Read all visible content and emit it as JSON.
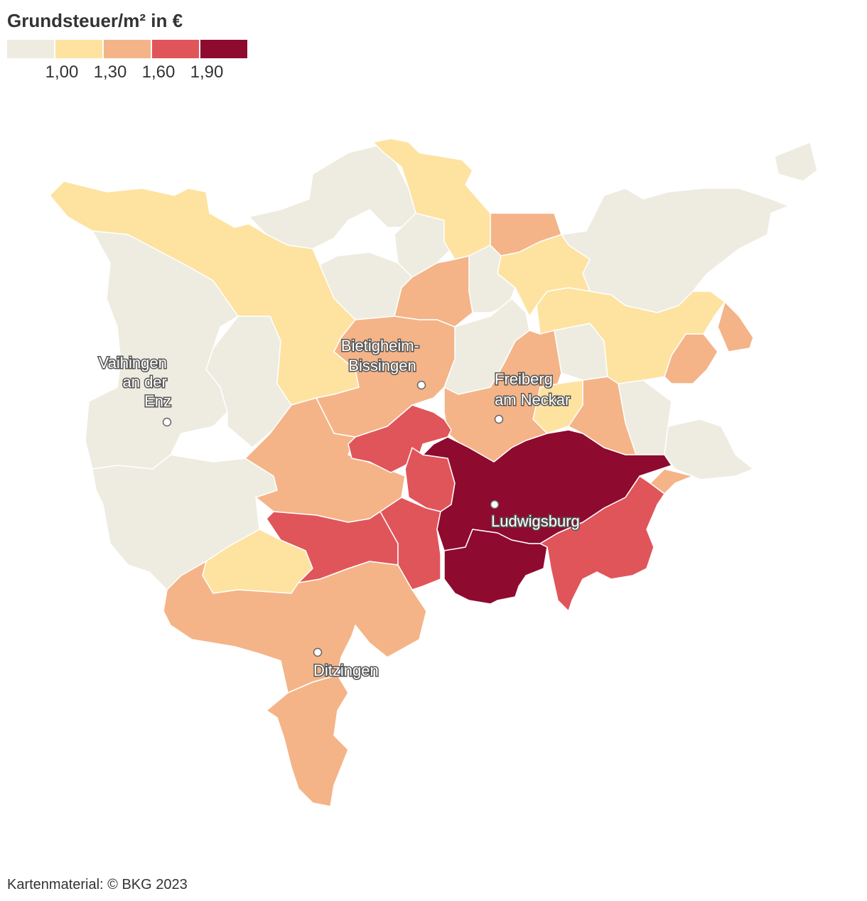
{
  "title": "Grundsteuer/m² in €",
  "legend": {
    "colors": [
      "#eeebe0",
      "#fee2a0",
      "#f4b488",
      "#e0555a",
      "#8e0a2f"
    ],
    "ticks": [
      "1,00",
      "1,30",
      "1,60",
      "1,90"
    ]
  },
  "cities": [
    {
      "lines": [
        "Vaihingen",
        "an der",
        "Enz"
      ]
    },
    {
      "lines": [
        "Bietigheim-",
        "Bissingen"
      ]
    },
    {
      "lines": [
        "Freiberg",
        "am Neckar"
      ]
    },
    {
      "lines": [
        "Ludwigsburg"
      ]
    },
    {
      "lines": [
        "Ditzingen"
      ]
    }
  ],
  "source": "Kartenmaterial: © BKG 2023"
}
